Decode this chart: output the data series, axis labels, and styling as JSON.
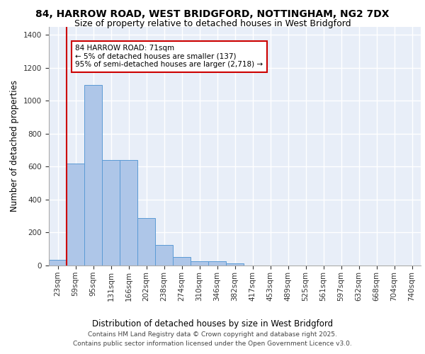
{
  "title_line1": "84, HARROW ROAD, WEST BRIDGFORD, NOTTINGHAM, NG2 7DX",
  "title_line2": "Size of property relative to detached houses in West Bridgford",
  "xlabel": "Distribution of detached houses by size in West Bridgford",
  "ylabel": "Number of detached properties",
  "categories": [
    "23sqm",
    "59sqm",
    "95sqm",
    "131sqm",
    "166sqm",
    "202sqm",
    "238sqm",
    "274sqm",
    "310sqm",
    "346sqm",
    "382sqm",
    "417sqm",
    "453sqm",
    "489sqm",
    "525sqm",
    "561sqm",
    "597sqm",
    "632sqm",
    "668sqm",
    "704sqm",
    "740sqm"
  ],
  "values": [
    35,
    620,
    1095,
    640,
    640,
    290,
    125,
    50,
    25,
    25,
    12,
    0,
    0,
    0,
    0,
    0,
    0,
    0,
    0,
    0,
    0
  ],
  "bar_color": "#aec6e8",
  "bar_edge_color": "#5b9bd5",
  "vline_x_index": 1,
  "vline_color": "#cc0000",
  "annotation_text": "84 HARROW ROAD: 71sqm\n← 5% of detached houses are smaller (137)\n95% of semi-detached houses are larger (2,718) →",
  "annotation_box_color": "#ffffff",
  "annotation_box_edge_color": "#cc0000",
  "ylim": [
    0,
    1450
  ],
  "yticks": [
    0,
    200,
    400,
    600,
    800,
    1000,
    1200,
    1400
  ],
  "background_color": "#e8eef8",
  "grid_color": "#ffffff",
  "footer_line1": "Contains HM Land Registry data © Crown copyright and database right 2025.",
  "footer_line2": "Contains public sector information licensed under the Open Government Licence v3.0.",
  "title_fontsize": 10,
  "subtitle_fontsize": 9,
  "axis_label_fontsize": 8.5,
  "tick_fontsize": 7.5,
  "annotation_fontsize": 7.5,
  "footer_fontsize": 6.5
}
